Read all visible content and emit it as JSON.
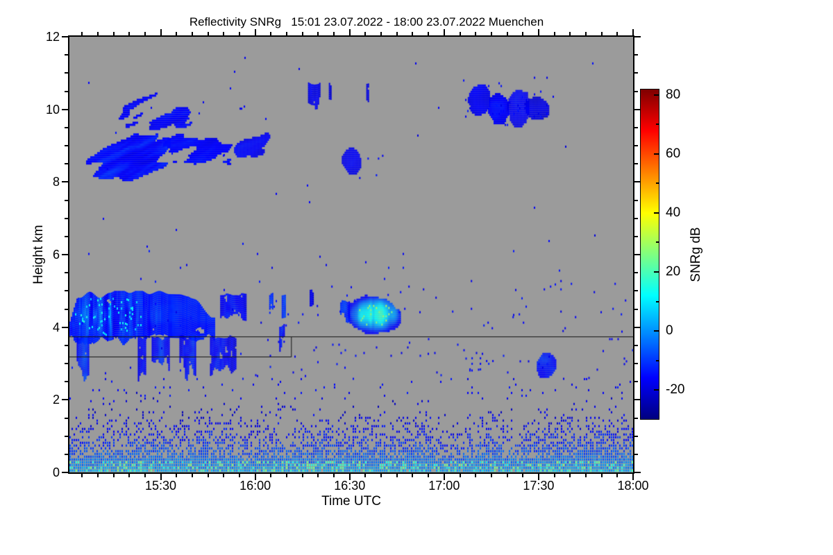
{
  "chart_data": {
    "type": "heatmap",
    "title": "Reflectivity SNRg   15:01 23.07.2022 - 18:00 23.07.2022 Muenchen",
    "xlabel": "Time UTC",
    "ylabel": "Height km",
    "colorbar_label": "SNRg dB",
    "x_start": "15:01",
    "x_end": "18:00",
    "x_span_minutes": 179,
    "x_ticks": [
      {
        "label": "15:30",
        "minute": 29
      },
      {
        "label": "16:00",
        "minute": 59
      },
      {
        "label": "16:30",
        "minute": 89
      },
      {
        "label": "17:00",
        "minute": 119
      },
      {
        "label": "17:30",
        "minute": 149
      },
      {
        "label": "18:00",
        "minute": 179
      }
    ],
    "x_minor_every_minutes": 5,
    "y_range_km": [
      0,
      12
    ],
    "y_ticks": [
      0,
      2,
      4,
      6,
      8,
      10,
      12
    ],
    "y_minor_step_km": 0.5,
    "colorbar_range_db": [
      -30,
      82
    ],
    "colorbar_ticks_db": [
      80,
      60,
      40,
      20,
      0,
      -20
    ],
    "colorbar_minor_step_db": 10,
    "colormap_jet_stops": [
      {
        "p": 0.0,
        "c": [
          0,
          0,
          127
        ]
      },
      {
        "p": 0.125,
        "c": [
          0,
          0,
          255
        ]
      },
      {
        "p": 0.375,
        "c": [
          0,
          255,
          255
        ]
      },
      {
        "p": 0.625,
        "c": [
          255,
          255,
          0
        ]
      },
      {
        "p": 0.875,
        "c": [
          255,
          0,
          0
        ]
      },
      {
        "p": 1.0,
        "c": [
          127,
          0,
          0
        ]
      }
    ],
    "plot_bg": "#9b9b9b",
    "boundary_line_color": "#141414",
    "boundary_lines": [
      {
        "points_time_height": [
          [
            0,
            3.75
          ],
          [
            179,
            3.75
          ]
        ]
      },
      {
        "points_time_height": [
          [
            0,
            3.2
          ],
          [
            70.5,
            3.2
          ],
          [
            70.5,
            3.75
          ]
        ]
      }
    ],
    "features": [
      {
        "kind": "fibrous",
        "label": "cirrus deck 15:01-15:34 8-10.2km",
        "t": [
          0,
          33
        ],
        "h": [
          7.95,
          10.2
        ],
        "base": -16,
        "amp": 6,
        "density": 1.15,
        "seed": 1
      },
      {
        "kind": "fibrous",
        "label": "cirrus upper fringe",
        "t": [
          13,
          41
        ],
        "h": [
          9.35,
          10.75
        ],
        "base": -18,
        "amp": 4,
        "density": 0.95,
        "seed": 2
      },
      {
        "kind": "fibrous",
        "label": "cirrus east lobe",
        "t": [
          28,
          54
        ],
        "h": [
          8.3,
          9.5
        ],
        "base": -18,
        "amp": 4,
        "density": 0.9,
        "seed": 3
      },
      {
        "kind": "fibrous",
        "t": [
          43,
          58
        ],
        "h": [
          9.9,
          10.45
        ],
        "base": -19,
        "amp": 3,
        "density": 0.8,
        "seed": 4
      },
      {
        "kind": "fibrous",
        "t": [
          51,
          65
        ],
        "h": [
          8.55,
          9.65
        ],
        "base": -18,
        "amp": 3,
        "density": 0.8,
        "seed": 5
      },
      {
        "kind": "vstreaks",
        "label": "thin high streaks 16:15-16:45 ~10.4km",
        "t": [
          74,
          105
        ],
        "h": [
          10.0,
          10.75
        ],
        "base": -19,
        "amp": 3,
        "density": 0.22,
        "seed": 6
      },
      {
        "kind": "blob",
        "label": "small patch 16:28 ~8.6km",
        "t": [
          86.5,
          92.5
        ],
        "h": [
          8.25,
          8.95
        ],
        "base": -17,
        "amp": 3,
        "density": 0.85,
        "seed": 7
      },
      {
        "kind": "specks",
        "t": [
          92,
          101
        ],
        "h": [
          8.1,
          8.75
        ],
        "base": -19,
        "density": 0.07,
        "seed": 8
      },
      {
        "kind": "blob",
        "label": "high patches 17:07-17:33 ~10.2km",
        "t": [
          126.5,
          133.5
        ],
        "h": [
          9.85,
          10.8
        ],
        "base": -17,
        "amp": 3,
        "density": 0.8,
        "seed": 9
      },
      {
        "kind": "blob",
        "t": [
          132.5,
          139.5
        ],
        "h": [
          9.6,
          10.45
        ],
        "base": -17,
        "amp": 3,
        "density": 0.85,
        "seed": 10
      },
      {
        "kind": "blob",
        "t": [
          139,
          146
        ],
        "h": [
          9.55,
          10.65
        ],
        "base": -17,
        "amp": 3,
        "density": 0.85,
        "seed": 11
      },
      {
        "kind": "blob",
        "t": [
          144,
          152.5
        ],
        "h": [
          9.75,
          10.35
        ],
        "base": -18,
        "amp": 3,
        "density": 0.7,
        "seed": 12
      },
      {
        "kind": "specks",
        "t": [
          125,
          154
        ],
        "h": [
          9.5,
          10.9
        ],
        "base": -19,
        "density": 0.04,
        "seed": 13
      },
      {
        "kind": "mcloud",
        "label": "mid-level cloud 15:01-15:47 3.7-5km",
        "t": [
          0,
          46
        ],
        "h": [
          3.7,
          5.0
        ],
        "base": -13,
        "amp": 26,
        "seed": 14
      },
      {
        "kind": "vstreaks",
        "label": "virga below mid-level cloud",
        "t": [
          1,
          53
        ],
        "h": [
          2.35,
          3.8
        ],
        "base": -13,
        "amp": 7,
        "density": 0.5,
        "seed": 15
      },
      {
        "kind": "vstreaks",
        "t": [
          47,
          57
        ],
        "h": [
          4.0,
          4.95
        ],
        "base": -15,
        "amp": 5,
        "density": 0.45,
        "seed": 16
      },
      {
        "kind": "vstreaks",
        "label": "bright streak ~16:06 4-5km",
        "t": [
          63,
          70
        ],
        "h": [
          4.1,
          4.95
        ],
        "base": -8,
        "amp": 9,
        "density": 0.55,
        "seed": 17
      },
      {
        "kind": "vstreaks",
        "t": [
          64,
          69
        ],
        "h": [
          3.0,
          4.1
        ],
        "base": -17,
        "amp": 3,
        "density": 0.3,
        "seed": 18
      },
      {
        "kind": "vstreaks",
        "t": [
          71,
          87
        ],
        "h": [
          4.45,
          5.05
        ],
        "base": -17,
        "amp": 4,
        "density": 0.28,
        "seed": 19
      },
      {
        "kind": "gblob",
        "label": "embedded cell 16:30-16:45 3.9-4.9km",
        "t": [
          88.5,
          105
        ],
        "h": [
          3.85,
          4.9
        ],
        "seed": 20
      },
      {
        "kind": "vstreaks",
        "t": [
          86,
          89
        ],
        "h": [
          4.05,
          4.75
        ],
        "base": -13,
        "amp": 6,
        "density": 0.7,
        "seed": 21
      },
      {
        "kind": "specks",
        "label": "patch 17:08-17:16 ~3km",
        "t": [
          127,
          136
        ],
        "h": [
          2.8,
          3.25
        ],
        "base": -18,
        "density": 0.1,
        "seed": 22
      },
      {
        "kind": "blob",
        "label": "patch 17:29-17:35 ~3km",
        "t": [
          148,
          154.5
        ],
        "h": [
          2.6,
          3.35
        ],
        "base": -14,
        "amp": 6,
        "density": 0.75,
        "seed": 23
      },
      {
        "kind": "specks",
        "label": "scattered noise pixels",
        "t": [
          0,
          179
        ],
        "h": [
          2.5,
          6.2
        ],
        "base": -19,
        "density": 0.005,
        "seed": 24
      },
      {
        "kind": "specks",
        "t": [
          0,
          179
        ],
        "h": [
          6.2,
          11.6
        ],
        "base": -20,
        "density": 0.0012,
        "seed": 25
      },
      {
        "kind": "specks",
        "t": [
          60,
          179
        ],
        "h": [
          3.8,
          5.3
        ],
        "base": -19,
        "density": 0.01,
        "seed": 26
      },
      {
        "kind": "specks",
        "t": [
          0,
          179
        ],
        "h": [
          2.05,
          2.6
        ],
        "base": -19,
        "density": 0.035,
        "seed": 27
      },
      {
        "kind": "specks",
        "t": [
          55,
          179
        ],
        "h": [
          2.6,
          3.7
        ],
        "base": -19,
        "density": 0.012,
        "seed": 28
      },
      {
        "kind": "bl",
        "label": "boundary-layer echoes 0-2.3km",
        "t": [
          0,
          179
        ],
        "h": [
          0,
          2.45
        ],
        "seed": 29
      }
    ]
  }
}
